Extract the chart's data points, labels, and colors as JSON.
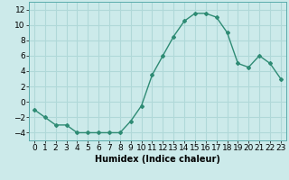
{
  "x": [
    0,
    1,
    2,
    3,
    4,
    5,
    6,
    7,
    8,
    9,
    10,
    11,
    12,
    13,
    14,
    15,
    16,
    17,
    18,
    19,
    20,
    21,
    22,
    23
  ],
  "y": [
    -1,
    -2,
    -3,
    -3,
    -4,
    -4,
    -4,
    -4,
    -4,
    -2.5,
    -0.5,
    3.5,
    6,
    8.5,
    10.5,
    11.5,
    11.5,
    11,
    9,
    5,
    4.5,
    6,
    5,
    3
  ],
  "line_color": "#2e8b74",
  "marker": "D",
  "marker_size": 2,
  "bg_color": "#cceaea",
  "grid_color": "#b0d8d8",
  "xlabel": "Humidex (Indice chaleur)",
  "xlim": [
    -0.5,
    23.5
  ],
  "ylim": [
    -5,
    13
  ],
  "yticks": [
    -4,
    -2,
    0,
    2,
    4,
    6,
    8,
    10,
    12
  ],
  "xticks": [
    0,
    1,
    2,
    3,
    4,
    5,
    6,
    7,
    8,
    9,
    10,
    11,
    12,
    13,
    14,
    15,
    16,
    17,
    18,
    19,
    20,
    21,
    22,
    23
  ],
  "label_fontsize": 7,
  "tick_fontsize": 6.5
}
